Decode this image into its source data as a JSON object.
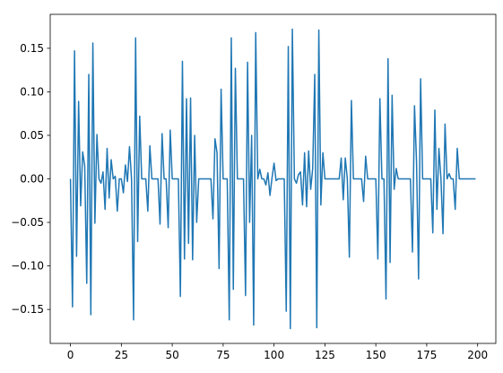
{
  "chart_data": {
    "type": "line",
    "x": [
      0,
      1,
      2,
      3,
      4,
      5,
      6,
      7,
      8,
      9,
      10,
      11,
      12,
      13,
      14,
      15,
      16,
      17,
      18,
      19,
      20,
      21,
      22,
      23,
      24,
      25,
      26,
      27,
      28,
      29,
      30,
      31,
      32,
      33,
      34,
      35,
      36,
      37,
      38,
      39,
      40,
      41,
      42,
      43,
      44,
      45,
      46,
      47,
      48,
      49,
      50,
      51,
      52,
      53,
      54,
      55,
      56,
      57,
      58,
      59,
      60,
      61,
      62,
      63,
      64,
      65,
      66,
      67,
      68,
      69,
      70,
      71,
      72,
      73,
      74,
      75,
      76,
      77,
      78,
      79,
      80,
      81,
      82,
      83,
      84,
      85,
      86,
      87,
      88,
      89,
      90,
      91,
      92,
      93,
      94,
      95,
      96,
      97,
      98,
      99,
      100,
      101,
      102,
      103,
      104,
      105,
      106,
      107,
      108,
      109,
      110,
      111,
      112,
      113,
      114,
      115,
      116,
      117,
      118,
      119,
      120,
      121,
      122,
      123,
      124,
      125,
      126,
      127,
      128,
      129,
      130,
      131,
      132,
      133,
      134,
      135,
      136,
      137,
      138,
      139,
      140,
      141,
      142,
      143,
      144,
      145,
      146,
      147,
      148,
      149,
      150,
      151,
      152,
      153,
      154,
      155,
      156,
      157,
      158,
      159,
      160,
      161,
      162,
      163,
      164,
      165,
      166,
      167,
      168,
      169,
      170,
      171,
      172,
      173,
      174,
      175,
      176,
      177,
      178,
      179,
      180,
      181,
      182,
      183,
      184,
      185,
      186,
      187,
      188,
      189,
      190,
      191,
      192,
      193,
      194,
      195,
      196,
      197,
      198,
      199
    ],
    "series": [
      {
        "color": "#1f77b4",
        "values": [
          0,
          -0.147,
          0.147,
          -0.089,
          0.089,
          -0.031,
          0.031,
          0.015,
          -0.12,
          0.12,
          -0.156,
          0.156,
          -0.051,
          0.051,
          0,
          -0.005,
          0.008,
          -0.035,
          0.035,
          -0.022,
          0.022,
          0,
          0.003,
          -0.037,
          0,
          0,
          -0.016,
          0.016,
          -0.003,
          0.037,
          0,
          -0.162,
          0.162,
          -0.072,
          0.072,
          0,
          0,
          0,
          -0.037,
          0.038,
          0,
          0,
          0,
          0,
          -0.052,
          0.052,
          0,
          0,
          -0.056,
          0.056,
          0,
          0,
          0,
          0,
          -0.135,
          0.135,
          -0.092,
          0.092,
          -0.074,
          0.093,
          -0.093,
          0.05,
          -0.05,
          0,
          0,
          0,
          0,
          0,
          0,
          0,
          -0.046,
          0.046,
          0.03,
          -0.103,
          0.103,
          0,
          0,
          0,
          -0.162,
          0.162,
          -0.127,
          0.127,
          0,
          0,
          0,
          0,
          -0.134,
          0.134,
          -0.05,
          0.05,
          -0.168,
          0.168,
          0,
          0.011,
          0,
          0,
          -0.007,
          0.007,
          -0.019,
          0.001,
          0.018,
          -0.002,
          0,
          0,
          0,
          0,
          -0.152,
          0.152,
          -0.172,
          0.172,
          0,
          -0.005,
          0.005,
          0.008,
          -0.03,
          0.03,
          -0.032,
          0.032,
          -0.012,
          0.012,
          0.12,
          -0.171,
          0.171,
          -0.03,
          0.03,
          0,
          0,
          0,
          0,
          0,
          0,
          0,
          0,
          0.024,
          -0.024,
          0.024,
          0,
          -0.09,
          0.09,
          0,
          0,
          0,
          0,
          0,
          -0.026,
          0.026,
          0,
          0,
          0,
          0,
          0,
          -0.092,
          0.092,
          0,
          0,
          -0.138,
          0.138,
          -0.096,
          0.096,
          -0.012,
          0.012,
          0,
          0,
          0,
          0,
          0,
          0,
          0,
          -0.084,
          0.084,
          0.02,
          -0.115,
          0.115,
          0,
          0,
          0,
          0,
          0,
          -0.062,
          0.079,
          -0.035,
          0.035,
          0,
          -0.063,
          0.063,
          0,
          0.006,
          0,
          0,
          -0.035,
          0.035,
          0,
          0,
          0,
          0,
          0,
          0,
          0,
          0,
          0
        ]
      }
    ],
    "xlim": [
      -9.95,
      208.95
    ],
    "xticks": [
      0,
      25,
      50,
      75,
      100,
      125,
      150,
      175,
      200
    ],
    "ylim": [
      -0.189,
      0.189
    ],
    "yticks": [
      {
        "value": -0.15,
        "label": "−0.15"
      },
      {
        "value": -0.1,
        "label": "−0.10"
      },
      {
        "value": -0.05,
        "label": "−0.05"
      },
      {
        "value": 0,
        "label": "0.00"
      },
      {
        "value": 0.05,
        "label": "0.05"
      },
      {
        "value": 0.1,
        "label": "0.10"
      },
      {
        "value": 0.15,
        "label": "0.15"
      }
    ],
    "grid": false
  }
}
